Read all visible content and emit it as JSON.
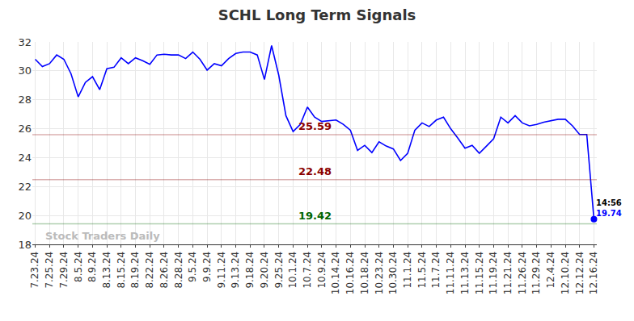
{
  "chart_data": {
    "type": "line",
    "title": "SCHL Long Term Signals",
    "categories": [
      "7.23.24",
      null,
      "7.25.24",
      null,
      "7.29.24",
      null,
      "8.5.24",
      null,
      "8.9.24",
      null,
      "8.13.24",
      null,
      "8.15.24",
      null,
      "8.19.24",
      null,
      "8.22.24",
      null,
      "8.26.24",
      null,
      "8.28.24",
      null,
      "9.5.24",
      null,
      "9.9.24",
      null,
      "9.11.24",
      null,
      "9.13.24",
      null,
      "9.18.24",
      null,
      "9.20.24",
      null,
      "9.25.24",
      null,
      "10.1.24",
      null,
      "10.7.24",
      null,
      "10.9.24",
      null,
      "10.14.24",
      null,
      "10.16.24",
      null,
      "10.18.24",
      null,
      "10.23.24",
      null,
      "10.30.24",
      null,
      "11.1.24",
      null,
      "11.5.24",
      null,
      "11.7.24",
      null,
      "11.11.24",
      null,
      "11.13.24",
      null,
      "11.15.24",
      null,
      "11.19.24",
      null,
      "11.21.24",
      null,
      "11.26.24",
      null,
      "11.29.24",
      null,
      "12.4.24",
      null,
      "12.10.24",
      null,
      "12.12.24",
      null,
      "12.16.24"
    ],
    "values": [
      30.8,
      30.3,
      30.5,
      31.1,
      30.8,
      29.8,
      28.2,
      29.2,
      29.6,
      28.7,
      30.15,
      30.25,
      30.9,
      30.5,
      30.9,
      30.7,
      30.45,
      31.1,
      31.15,
      31.1,
      31.1,
      30.85,
      31.3,
      30.8,
      30.05,
      30.5,
      30.35,
      30.85,
      31.2,
      31.3,
      31.3,
      31.1,
      29.4,
      31.75,
      29.7,
      26.9,
      25.8,
      26.3,
      27.5,
      26.8,
      26.5,
      26.55,
      26.6,
      26.3,
      25.9,
      24.5,
      24.85,
      24.35,
      25.1,
      24.8,
      24.6,
      23.8,
      24.3,
      25.9,
      26.4,
      26.15,
      26.6,
      26.8,
      26.0,
      25.35,
      24.65,
      24.85,
      24.3,
      24.8,
      25.3,
      26.8,
      26.4,
      26.9,
      26.4,
      26.2,
      26.3,
      26.45,
      26.55,
      26.65,
      26.65,
      26.2,
      25.6,
      25.6,
      19.74
    ],
    "color": "#0000ff",
    "reference_lines": [
      {
        "value": 25.59,
        "color": "#8b0000"
      },
      {
        "value": 22.48,
        "color": "#8b0000"
      },
      {
        "value": 19.42,
        "color": "#006400"
      }
    ],
    "annotations": [
      {
        "text": "14:56"
      },
      {
        "text": "Stock Traders Daily"
      }
    ],
    "ylim": [
      18,
      32
    ],
    "yticks": [
      18,
      20,
      22,
      24,
      26,
      28,
      30,
      32
    ],
    "grid": true
  }
}
